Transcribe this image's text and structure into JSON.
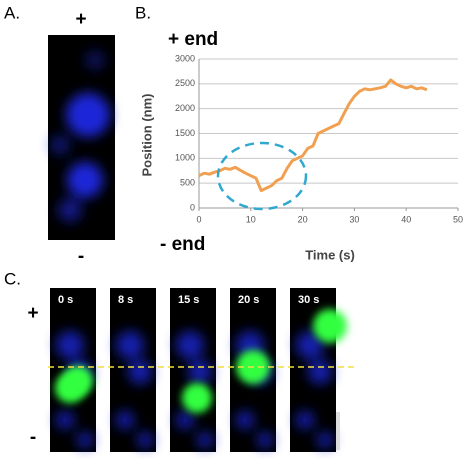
{
  "chart_data": {
    "type": "line",
    "xlabel": "Time (s)",
    "ylabel": "Position (nm)",
    "x": [
      0,
      1,
      2,
      3,
      4,
      5,
      6,
      7,
      8,
      9,
      10,
      11,
      12,
      13,
      14,
      15,
      16,
      17,
      18,
      19,
      20,
      21,
      22,
      23,
      24,
      25,
      26,
      27,
      28,
      29,
      30,
      31,
      32,
      33,
      34,
      35,
      36,
      37,
      38,
      39,
      40,
      41,
      42,
      43,
      44
    ],
    "y": [
      650,
      700,
      680,
      720,
      750,
      800,
      780,
      820,
      760,
      700,
      650,
      600,
      350,
      400,
      450,
      550,
      600,
      800,
      950,
      1000,
      1050,
      1200,
      1250,
      1500,
      1550,
      1600,
      1650,
      1700,
      1900,
      2100,
      2250,
      2350,
      2400,
      2380,
      2400,
      2420,
      2450,
      2580,
      2500,
      2450,
      2420,
      2450,
      2400,
      2420,
      2380
    ],
    "color": "#f0a050",
    "xlim": [
      0,
      50
    ],
    "xticks": [
      0,
      10,
      20,
      30,
      40,
      50
    ],
    "ylim": [
      0,
      3000
    ],
    "yticks": [
      0,
      500,
      1000,
      1500,
      2000,
      2500,
      3000
    ],
    "grid": true
  },
  "labels": {
    "panel_a": "A.",
    "panel_b": "B.",
    "panel_c": "C.",
    "plus_a": "+",
    "minus_a": "-",
    "plus_end": "+ end",
    "minus_end": "- end",
    "plus_c": "+",
    "minus_c": "-"
  },
  "frames": [
    "0 s",
    "8 s",
    "15 s",
    "20 s",
    "30 s"
  ]
}
